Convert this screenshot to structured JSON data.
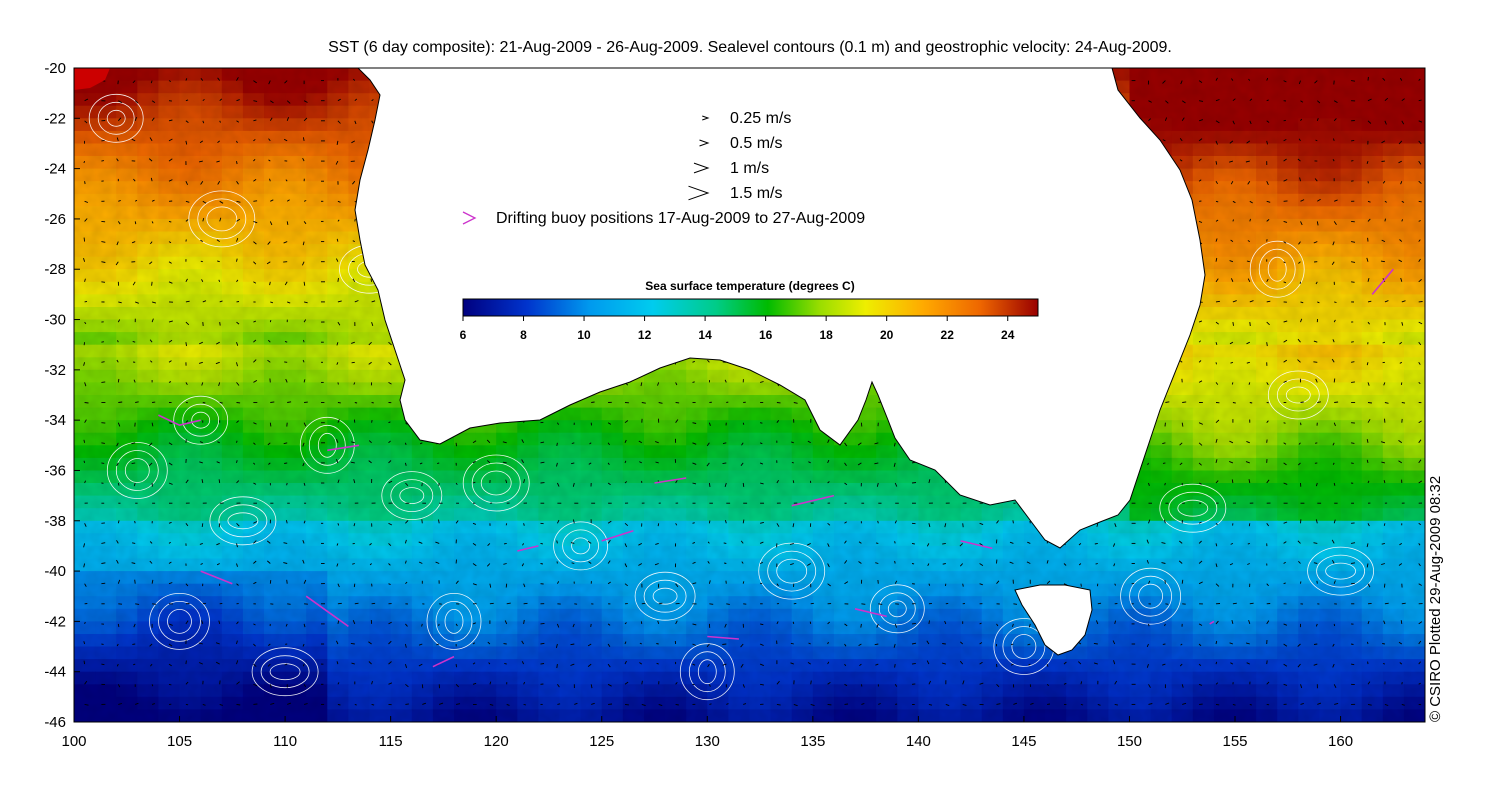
{
  "title": "SST (6 day composite): 21-Aug-2009 - 26-Aug-2009. Sealevel contours (0.1 m) and geostrophic velocity: 24-Aug-2009.",
  "credit": "© CSIRO Plotted 29-Aug-2009 08:32",
  "chart_data": {
    "type": "heatmap",
    "title": "SST (6 day composite): 21-Aug-2009 - 26-Aug-2009. Sealevel contours (0.1 m) and geostrophic velocity: 24-Aug-2009.",
    "xlim": [
      100,
      164
    ],
    "ylim": [
      -46,
      -20
    ],
    "x_ticks": [
      "100",
      "105",
      "110",
      "115",
      "120",
      "125",
      "130",
      "135",
      "140",
      "145",
      "150",
      "155",
      "160"
    ],
    "x_tick_values": [
      100,
      105,
      110,
      115,
      120,
      125,
      130,
      135,
      140,
      145,
      150,
      155,
      160
    ],
    "y_ticks": [
      "-20",
      "-22",
      "-24",
      "-26",
      "-28",
      "-30",
      "-32",
      "-34",
      "-36",
      "-38",
      "-40",
      "-42",
      "-44",
      "-46"
    ],
    "y_tick_values": [
      -20,
      -22,
      -24,
      -26,
      -28,
      -30,
      -32,
      -34,
      -36,
      -38,
      -40,
      -42,
      -44,
      -46
    ],
    "colorbar": {
      "title": "Sea surface temperature (degrees C)",
      "range": [
        6,
        25
      ],
      "ticks": [
        "6",
        "8",
        "10",
        "12",
        "14",
        "16",
        "18",
        "20",
        "22",
        "24"
      ],
      "tick_values": [
        6,
        8,
        10,
        12,
        14,
        16,
        18,
        20,
        22,
        24
      ]
    },
    "velocity_legend": [
      {
        "label": "0.25 m/s",
        "speed": 0.25
      },
      {
        "label": "0.5 m/s",
        "speed": 0.5
      },
      {
        "label": "1 m/s",
        "speed": 1
      },
      {
        "label": "1.5 m/s",
        "speed": 1.5
      }
    ],
    "buoy_legend": "Drifting buoy positions 17-Aug-2009 to 27-Aug-2009",
    "colors": {
      "buoy": "#cc33cc",
      "land": "#ffffff",
      "contour": "#ffffff",
      "arrow": "#000000"
    }
  }
}
